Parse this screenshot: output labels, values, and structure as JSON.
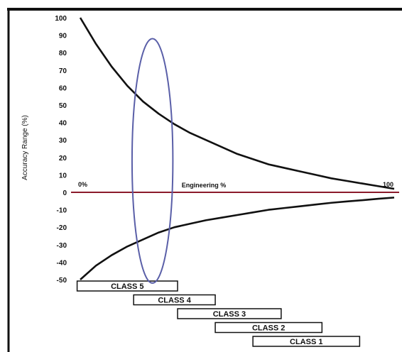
{
  "chart_data": {
    "type": "line",
    "title": "",
    "xlabel": "",
    "ylabel": "Accuracy Range (%)",
    "ylim": [
      -50,
      100
    ],
    "y_ticks": [
      "100",
      "90",
      "80",
      "70",
      "60",
      "50",
      "40",
      "30",
      "20",
      "10",
      "0",
      "-10",
      "-20",
      "-30",
      "-40",
      "-50"
    ],
    "x_annotations": {
      "start": "0%",
      "middle": "Engineering %",
      "end": "100"
    },
    "series": [
      {
        "x": [
          0,
          5,
          10,
          15,
          20,
          25,
          30,
          35,
          40,
          45,
          50,
          55,
          60,
          65,
          70,
          75,
          80,
          85,
          90,
          95,
          100
        ],
        "values": [
          100,
          85,
          72,
          61,
          52,
          45,
          39,
          34,
          30,
          26,
          22,
          19,
          16,
          14,
          12,
          10,
          8,
          6.5,
          5,
          3.5,
          2
        ]
      },
      {
        "x": [
          0,
          5,
          10,
          15,
          20,
          25,
          30,
          35,
          40,
          45,
          50,
          55,
          60,
          65,
          70,
          75,
          80,
          85,
          90,
          95,
          100
        ],
        "values": [
          -50,
          -42,
          -36,
          -31,
          -27,
          -23,
          -20,
          -18,
          -16,
          -14.5,
          -13,
          -11.5,
          -10,
          -9,
          -8,
          -7,
          -6,
          -5.2,
          -4.5,
          -3.7,
          -3
        ]
      }
    ],
    "zero_line": {
      "y": 0,
      "color": "#8b1a2b"
    },
    "highlight_ellipse": {
      "color": "#5a5fa8",
      "x_center": 23,
      "y_center": 18,
      "x_radius": 6.5,
      "y_radius": 70
    },
    "classes": [
      {
        "label": "CLASS 5",
        "x_start": -1,
        "x_end": 31
      },
      {
        "label": "CLASS 4",
        "x_start": 17,
        "x_end": 43
      },
      {
        "label": "CLASS 3",
        "x_start": 31,
        "x_end": 64
      },
      {
        "label": "CLASS 2",
        "x_start": 43,
        "x_end": 77
      },
      {
        "label": "CLASS 1",
        "x_start": 55,
        "x_end": 89
      }
    ]
  },
  "colors": {
    "curve": "#111111",
    "frame": "#111111"
  }
}
